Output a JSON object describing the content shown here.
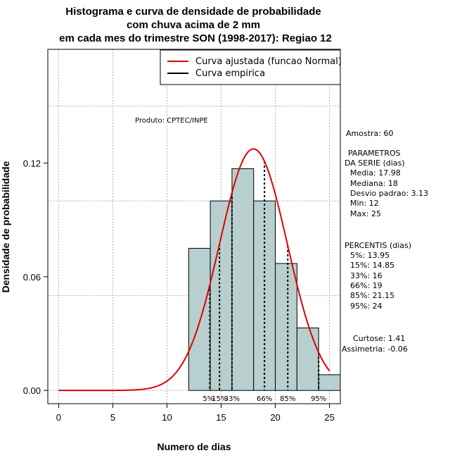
{
  "chart_data": {
    "type": "bar",
    "title_lines": [
      "Histograma e curva de densidade de probabilidade",
      "com chuva acima de 2 mm",
      "em cada mes do trimestre SON (1998-2017): Regiao 12"
    ],
    "xlabel": "Numero de dias",
    "ylabel": "Densidade de probabilidade",
    "xlim": [
      -1,
      26
    ],
    "ylim": [
      -0.007,
      0.18
    ],
    "x_ticks": [
      0,
      5,
      10,
      15,
      20,
      25
    ],
    "x_tick_labels": [
      "0",
      "5",
      "10",
      "15",
      "20",
      "25"
    ],
    "y_ticks": [
      0.0,
      0.06,
      0.12
    ],
    "y_tick_labels": [
      "0.00",
      "0.06",
      "0.12"
    ],
    "grid_x": [
      0,
      5,
      10,
      15,
      20,
      25
    ],
    "grid_y": [
      0.0,
      0.05,
      0.1,
      0.15
    ],
    "histogram": {
      "bin_edges": [
        12,
        14,
        16,
        18,
        20,
        22,
        24,
        26
      ],
      "density": [
        0.075,
        0.1,
        0.117,
        0.1,
        0.067,
        0.033,
        0.0083
      ],
      "fill_color": "#b7cfce"
    },
    "fitted_curve": {
      "name": "Curva ajustada (funcao Normal)",
      "distribution": "normal",
      "mean": 17.98,
      "sd": 3.13,
      "x_range": [
        0,
        25
      ],
      "color": "#e00000"
    },
    "percentile_lines": [
      {
        "x": 13.95,
        "label": "5%"
      },
      {
        "x": 14.85,
        "label": "15%"
      },
      {
        "x": 16,
        "label": "33%"
      },
      {
        "x": 19,
        "label": "66%"
      },
      {
        "x": 21.15,
        "label": "85%"
      },
      {
        "x": 24,
        "label": "95%"
      }
    ],
    "legend": {
      "position": "top-right",
      "entries": [
        {
          "label": "Curva ajustada (funcao Normal)",
          "color": "#e00000"
        },
        {
          "label": "Curva empirica",
          "color": "#000000"
        }
      ]
    },
    "annotations": {
      "producer": "Produto: CPTEC/INPE",
      "sample": "Amostra: 60",
      "params_header_1": "PARAMETROS",
      "params_header_2": "DA SERIE (dias)",
      "params": [
        "Media: 17.98",
        "Mediana: 18",
        "Desvio padrao: 3.13",
        "Min: 12",
        "Max: 25"
      ],
      "percentis_header": "PERCENTIS (dias)",
      "percentis": [
        "5%: 13.95",
        "15%: 14.85",
        "33%: 16",
        "66%: 19",
        "85%: 21.15",
        "95%: 24"
      ],
      "curtose": "Curtose: 1.41",
      "assimetria": "Assimetria: -0.06"
    }
  }
}
